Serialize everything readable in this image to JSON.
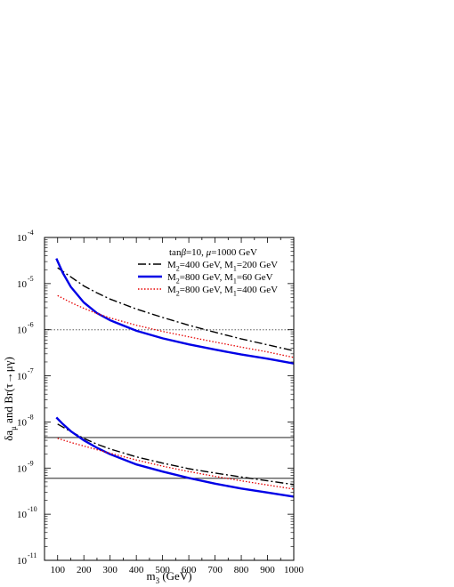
{
  "chart_data": {
    "type": "line",
    "xlabel": "m<sub>3</sub> (GeV)",
    "ylabel": "δa<sub>μ</sub> and Br(τ→μγ)",
    "x_axis": {
      "range": [
        50,
        1000
      ],
      "scale": "linear",
      "ticks": [
        100,
        200,
        300,
        400,
        500,
        600,
        700,
        800,
        900,
        1000
      ],
      "tick_labels": [
        "100",
        "200",
        "300",
        "400",
        "500",
        "600",
        "700",
        "800",
        "900",
        "1000"
      ]
    },
    "y_axis": {
      "range": [
        1e-11,
        0.0001
      ],
      "scale": "log",
      "ticks": [
        1e-11,
        1e-10,
        1e-09,
        1e-08,
        1e-07,
        1e-06,
        1e-05,
        0.0001
      ],
      "tick_base": [
        "10",
        "10",
        "10",
        "10",
        "10",
        "10",
        "10",
        "10"
      ],
      "tick_exp": [
        "-11",
        "-10",
        "-9",
        "-8",
        "-7",
        "-6",
        "-5",
        "-4"
      ]
    },
    "legend": {
      "placement": "top-right",
      "header": "tan<i>β</i>=10, <i>μ</i>=1000 GeV"
    },
    "series": [
      {
        "name": "M<sub>2</sub>=400 GeV, M<sub>1</sub>=200 GeV",
        "style": "dashdot",
        "color": "#000000",
        "group": "upper",
        "x": [
          100,
          150,
          200,
          250,
          300,
          400,
          500,
          600,
          700,
          800,
          900,
          1000
        ],
        "y": [
          2.2e-05,
          1.4e-05,
          8.9e-06,
          6.3e-06,
          4.6e-06,
          2.8e-06,
          1.85e-06,
          1.25e-06,
          8.8e-07,
          6.3e-07,
          4.7e-07,
          3.5e-07
        ]
      },
      {
        "name": "M<sub>2</sub>=800 GeV, M<sub>1</sub>=60 GeV",
        "style": "solid",
        "color": "#0000e6",
        "group": "upper",
        "x": [
          95,
          120,
          150,
          200,
          250,
          300,
          400,
          500,
          600,
          700,
          800,
          900,
          1000
        ],
        "y": [
          3.5e-05,
          1.7e-05,
          8.5e-06,
          3.9e-06,
          2.3e-06,
          1.6e-06,
          9.5e-07,
          6.5e-07,
          4.8e-07,
          3.7e-07,
          2.9e-07,
          2.35e-07,
          1.85e-07
        ]
      },
      {
        "name": "M<sub>2</sub>=800 GeV, M<sub>1</sub>=400 GeV",
        "style": "dotted",
        "color": "#e60000",
        "group": "upper",
        "x": [
          100,
          150,
          200,
          250,
          300,
          400,
          500,
          600,
          700,
          800,
          900,
          1000
        ],
        "y": [
          5.5e-06,
          3.9e-06,
          2.9e-06,
          2.25e-06,
          1.8e-06,
          1.25e-06,
          9.2e-07,
          7e-07,
          5.4e-07,
          4.2e-07,
          3.3e-07,
          2.5e-07
        ]
      },
      {
        "style": "dashdot",
        "color": "#000000",
        "group": "lower",
        "x": [
          100,
          150,
          200,
          250,
          300,
          400,
          500,
          600,
          700,
          800,
          900,
          1000
        ],
        "y": [
          9e-09,
          6.2e-09,
          4.4e-09,
          3.3e-09,
          2.6e-09,
          1.75e-09,
          1.28e-09,
          9.7e-10,
          7.8e-10,
          6.4e-10,
          5.3e-10,
          4.4e-10
        ]
      },
      {
        "style": "solid",
        "color": "#0000e6",
        "group": "lower",
        "x": [
          95,
          120,
          150,
          200,
          250,
          300,
          400,
          500,
          600,
          700,
          800,
          900,
          1000
        ],
        "y": [
          1.25e-08,
          9e-09,
          6.3e-09,
          4e-09,
          2.75e-09,
          2e-09,
          1.2e-09,
          8.4e-10,
          6.1e-10,
          4.6e-10,
          3.6e-10,
          2.95e-10,
          2.4e-10
        ]
      },
      {
        "style": "dotted",
        "color": "#e60000",
        "group": "lower",
        "x": [
          100,
          150,
          200,
          250,
          300,
          400,
          500,
          600,
          700,
          800,
          900,
          1000
        ],
        "y": [
          4.4e-09,
          3.6e-09,
          3e-09,
          2.5e-09,
          2.1e-09,
          1.5e-09,
          1.1e-09,
          8.4e-10,
          6.6e-10,
          5.3e-10,
          4.3e-10,
          3.5e-10
        ]
      }
    ],
    "reference_lines": [
      {
        "y": 1e-06,
        "style": "dotted",
        "color": "#888888"
      },
      {
        "y": 4.6e-09,
        "style": "solid",
        "color": "#000000"
      },
      {
        "y": 6e-10,
        "style": "solid",
        "color": "#000000"
      }
    ]
  }
}
